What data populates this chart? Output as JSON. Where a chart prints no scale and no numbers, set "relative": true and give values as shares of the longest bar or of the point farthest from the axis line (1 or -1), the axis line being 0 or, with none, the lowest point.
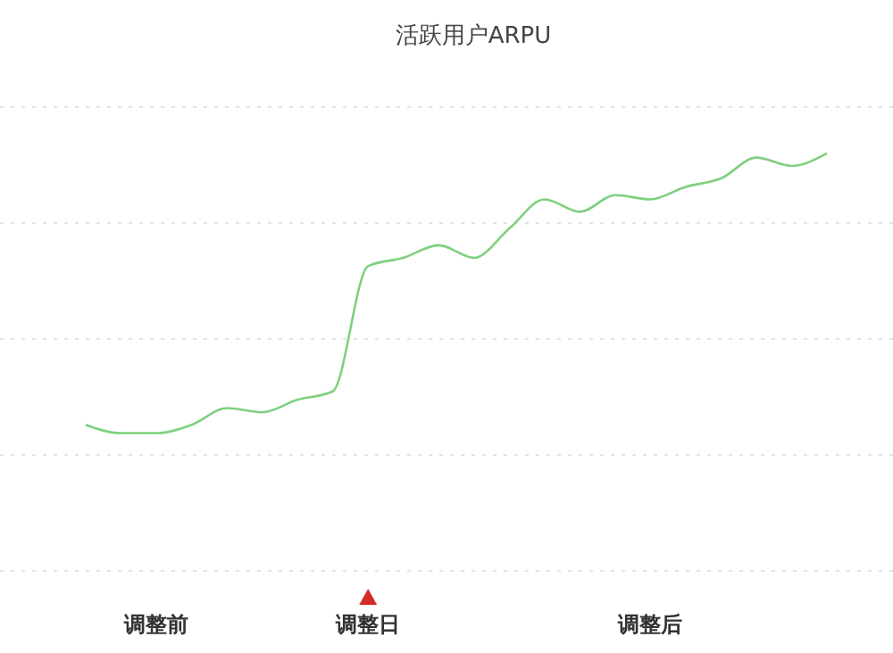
{
  "chart_data": {
    "type": "line",
    "title": "活跃用户ARPU",
    "relative": true,
    "grid": "y",
    "categories": [
      null,
      null,
      "调整前",
      null,
      null,
      null,
      null,
      null,
      "调整日",
      null,
      null,
      null,
      null,
      null,
      null,
      null,
      "调整后",
      null,
      null,
      null,
      null,
      null
    ],
    "series": [
      {
        "color": "#7ed07e",
        "values": [
          0.35,
          0.33,
          0.33,
          0.35,
          0.39,
          0.38,
          0.41,
          0.43,
          0.73,
          0.75,
          0.78,
          0.75,
          0.82,
          0.89,
          0.86,
          0.9,
          0.89,
          0.92,
          0.94,
          0.99,
          0.97,
          1.0
        ]
      }
    ],
    "marker": "none",
    "line_style": "solid"
  }
}
